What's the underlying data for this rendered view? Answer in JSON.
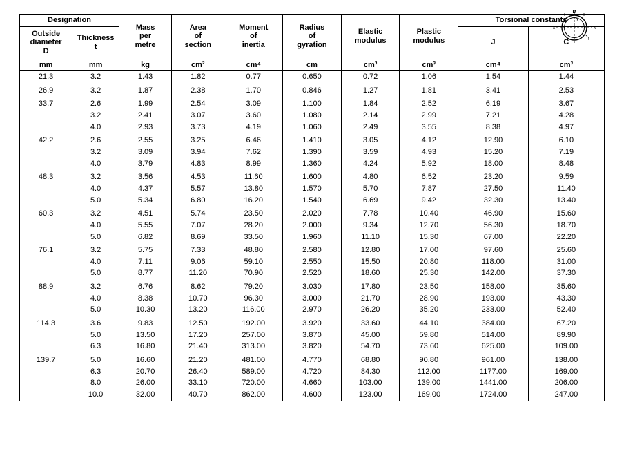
{
  "diagram": {
    "labels": {
      "D": "D",
      "y": "y",
      "x_left": "x",
      "x_right": "x",
      "t": "t"
    },
    "stroke": "#000000",
    "size": 50
  },
  "headers": {
    "designation": "Designation",
    "torsional": "Torsional constants",
    "outside_diameter": "Outside diameter D",
    "thickness": "Thickness t",
    "mass": "Mass per metre",
    "area": "Area of section",
    "moment": "Moment of inertia",
    "radius_gyr": "Radius of gyration",
    "elastic": "Elastic modulus",
    "plastic": "Plastic modulus",
    "J": "J",
    "C": "C"
  },
  "units": {
    "mm": "mm",
    "kg": "kg",
    "cm2": "cm²",
    "cm4": "cm⁴",
    "cm": "cm",
    "cm3": "cm³"
  },
  "rows": [
    {
      "D": "21.3",
      "t": "3.2",
      "mass": "1.43",
      "area": "1.82",
      "I": "0.77",
      "r": "0.650",
      "Ze": "0.72",
      "Zp": "1.06",
      "J": "1.54",
      "C": "1.44",
      "first": true
    },
    {
      "D": "26.9",
      "t": "3.2",
      "mass": "1.87",
      "area": "2.38",
      "I": "1.70",
      "r": "0.846",
      "Ze": "1.27",
      "Zp": "1.81",
      "J": "3.41",
      "C": "2.53",
      "first": true
    },
    {
      "D": "33.7",
      "t": "2.6",
      "mass": "1.99",
      "area": "2.54",
      "I": "3.09",
      "r": "1.100",
      "Ze": "1.84",
      "Zp": "2.52",
      "J": "6.19",
      "C": "3.67",
      "first": true
    },
    {
      "D": "",
      "t": "3.2",
      "mass": "2.41",
      "area": "3.07",
      "I": "3.60",
      "r": "1.080",
      "Ze": "2.14",
      "Zp": "2.99",
      "J": "7.21",
      "C": "4.28"
    },
    {
      "D": "",
      "t": "4.0",
      "mass": "2.93",
      "area": "3.73",
      "I": "4.19",
      "r": "1.060",
      "Ze": "2.49",
      "Zp": "3.55",
      "J": "8.38",
      "C": "4.97"
    },
    {
      "D": "42.2",
      "t": "2.6",
      "mass": "2.55",
      "area": "3.25",
      "I": "6.46",
      "r": "1.410",
      "Ze": "3.05",
      "Zp": "4.12",
      "J": "12.90",
      "C": "6.10",
      "first": true
    },
    {
      "D": "",
      "t": "3.2",
      "mass": "3.09",
      "area": "3.94",
      "I": "7.62",
      "r": "1.390",
      "Ze": "3.59",
      "Zp": "4.93",
      "J": "15.20",
      "C": "7.19"
    },
    {
      "D": "",
      "t": "4.0",
      "mass": "3.79",
      "area": "4.83",
      "I": "8.99",
      "r": "1.360",
      "Ze": "4.24",
      "Zp": "5.92",
      "J": "18.00",
      "C": "8.48"
    },
    {
      "D": "48.3",
      "t": "3.2",
      "mass": "3.56",
      "area": "4.53",
      "I": "11.60",
      "r": "1.600",
      "Ze": "4.80",
      "Zp": "6.52",
      "J": "23.20",
      "C": "9.59",
      "first": true
    },
    {
      "D": "",
      "t": "4.0",
      "mass": "4.37",
      "area": "5.57",
      "I": "13.80",
      "r": "1.570",
      "Ze": "5.70",
      "Zp": "7.87",
      "J": "27.50",
      "C": "11.40"
    },
    {
      "D": "",
      "t": "5.0",
      "mass": "5.34",
      "area": "6.80",
      "I": "16.20",
      "r": "1.540",
      "Ze": "6.69",
      "Zp": "9.42",
      "J": "32.30",
      "C": "13.40"
    },
    {
      "D": "60.3",
      "t": "3.2",
      "mass": "4.51",
      "area": "5.74",
      "I": "23.50",
      "r": "2.020",
      "Ze": "7.78",
      "Zp": "10.40",
      "J": "46.90",
      "C": "15.60",
      "first": true
    },
    {
      "D": "",
      "t": "4.0",
      "mass": "5.55",
      "area": "7.07",
      "I": "28.20",
      "r": "2.000",
      "Ze": "9.34",
      "Zp": "12.70",
      "J": "56.30",
      "C": "18.70"
    },
    {
      "D": "",
      "t": "5.0",
      "mass": "6.82",
      "area": "8.69",
      "I": "33.50",
      "r": "1.960",
      "Ze": "11.10",
      "Zp": "15.30",
      "J": "67.00",
      "C": "22.20"
    },
    {
      "D": "76.1",
      "t": "3.2",
      "mass": "5.75",
      "area": "7.33",
      "I": "48.80",
      "r": "2.580",
      "Ze": "12.80",
      "Zp": "17.00",
      "J": "97.60",
      "C": "25.60",
      "first": true
    },
    {
      "D": "",
      "t": "4.0",
      "mass": "7.11",
      "area": "9.06",
      "I": "59.10",
      "r": "2.550",
      "Ze": "15.50",
      "Zp": "20.80",
      "J": "118.00",
      "C": "31.00"
    },
    {
      "D": "",
      "t": "5.0",
      "mass": "8.77",
      "area": "11.20",
      "I": "70.90",
      "r": "2.520",
      "Ze": "18.60",
      "Zp": "25.30",
      "J": "142.00",
      "C": "37.30"
    },
    {
      "D": "88.9",
      "t": "3.2",
      "mass": "6.76",
      "area": "8.62",
      "I": "79.20",
      "r": "3.030",
      "Ze": "17.80",
      "Zp": "23.50",
      "J": "158.00",
      "C": "35.60",
      "first": true
    },
    {
      "D": "",
      "t": "4.0",
      "mass": "8.38",
      "area": "10.70",
      "I": "96.30",
      "r": "3.000",
      "Ze": "21.70",
      "Zp": "28.90",
      "J": "193.00",
      "C": "43.30"
    },
    {
      "D": "",
      "t": "5.0",
      "mass": "10.30",
      "area": "13.20",
      "I": "116.00",
      "r": "2.970",
      "Ze": "26.20",
      "Zp": "35.20",
      "J": "233.00",
      "C": "52.40"
    },
    {
      "D": "114.3",
      "t": "3.6",
      "mass": "9.83",
      "area": "12.50",
      "I": "192.00",
      "r": "3.920",
      "Ze": "33.60",
      "Zp": "44.10",
      "J": "384.00",
      "C": "67.20",
      "first": true
    },
    {
      "D": "",
      "t": "5.0",
      "mass": "13.50",
      "area": "17.20",
      "I": "257.00",
      "r": "3.870",
      "Ze": "45.00",
      "Zp": "59.80",
      "J": "514.00",
      "C": "89.90"
    },
    {
      "D": "",
      "t": "6.3",
      "mass": "16.80",
      "area": "21.40",
      "I": "313.00",
      "r": "3.820",
      "Ze": "54.70",
      "Zp": "73.60",
      "J": "625.00",
      "C": "109.00"
    },
    {
      "D": "139.7",
      "t": "5.0",
      "mass": "16.60",
      "area": "21.20",
      "I": "481.00",
      "r": "4.770",
      "Ze": "68.80",
      "Zp": "90.80",
      "J": "961.00",
      "C": "138.00",
      "first": true
    },
    {
      "D": "",
      "t": "6.3",
      "mass": "20.70",
      "area": "26.40",
      "I": "589.00",
      "r": "4.720",
      "Ze": "84.30",
      "Zp": "112.00",
      "J": "1177.00",
      "C": "169.00"
    },
    {
      "D": "",
      "t": "8.0",
      "mass": "26.00",
      "area": "33.10",
      "I": "720.00",
      "r": "4.660",
      "Ze": "103.00",
      "Zp": "139.00",
      "J": "1441.00",
      "C": "206.00"
    },
    {
      "D": "",
      "t": "10.0",
      "mass": "32.00",
      "area": "40.70",
      "I": "862.00",
      "r": "4.600",
      "Ze": "123.00",
      "Zp": "169.00",
      "J": "1724.00",
      "C": "247.00"
    }
  ],
  "col_widths": [
    "9%",
    "8%",
    "9%",
    "9%",
    "10%",
    "10%",
    "10%",
    "10%",
    "12%",
    "13%"
  ]
}
